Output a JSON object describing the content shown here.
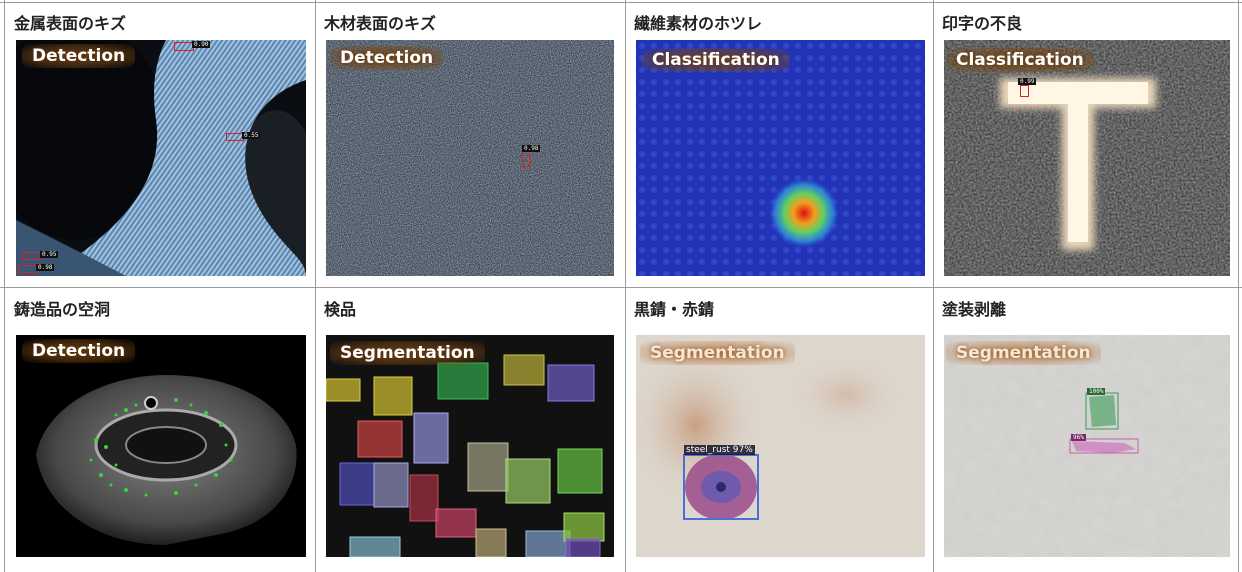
{
  "cells": [
    {
      "title": "金属表面のキズ",
      "method": "Detection",
      "labels": [
        "0.90",
        "0.55",
        "0.95",
        "0.98"
      ]
    },
    {
      "title": "木材表面のキズ",
      "method": "Detection",
      "labels": [
        "0.98"
      ]
    },
    {
      "title": "繊維素材のホツレ",
      "method": "Classification"
    },
    {
      "title": "印字の不良",
      "method": "Classification",
      "labels": [
        "0.99"
      ]
    },
    {
      "title": "鋳造品の空洞",
      "method": "Detection"
    },
    {
      "title": "検品",
      "method": "Segmentation"
    },
    {
      "title": "黒錆・赤錆",
      "method": "Segmentation",
      "labels": [
        "steel_rust 97%"
      ]
    },
    {
      "title": "塗装剥離",
      "method": "Segmentation",
      "labels": [
        "100%",
        "96%"
      ]
    }
  ],
  "colors": {
    "detection_box": "#e02020",
    "grid_line": "#9a9a9a",
    "rust_box": "#4a6fd6"
  }
}
